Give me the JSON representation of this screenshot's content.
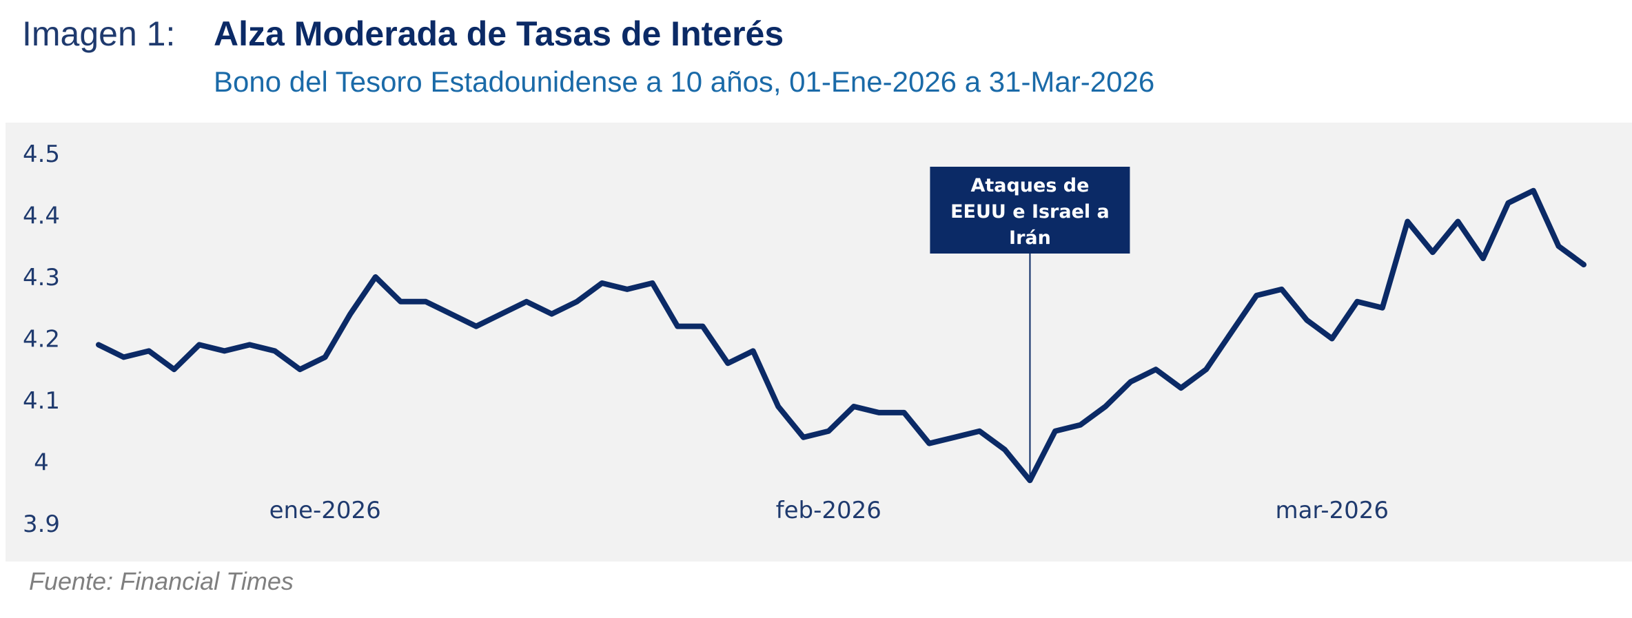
{
  "header": {
    "figure_label": "Imagen 1:",
    "title": "Alza Moderada de Tasas de Interés",
    "subtitle": "Bono del Tesoro Estadounidense a 10 años, 01-Ene-2026  a 31-Mar-2026"
  },
  "source": "Fuente: Financial Times",
  "colors": {
    "line": "#0b2a66",
    "plot_background": "#f2f2f2",
    "annotation_box": "#0b2a66",
    "annotation_text": "#ffffff"
  },
  "chart_data": {
    "type": "line",
    "title": "Alza Moderada de Tasas de Interés",
    "subtitle": "Bono del Tesoro Estadounidense a 10 años, 01-Ene-2026  a 31-Mar-2026",
    "xlabel": "",
    "ylabel": "",
    "ylim": [
      3.9,
      4.5
    ],
    "y_ticks": [
      "3.9",
      "4",
      "4.1",
      "4.2",
      "4.3",
      "4.4",
      "4.5"
    ],
    "x_ticks": [
      {
        "label": "ene-2026",
        "index": 9
      },
      {
        "label": "feb-2026",
        "index": 29
      },
      {
        "label": "mar-2026",
        "index": 49
      }
    ],
    "grid": false,
    "legend": "none",
    "series": [
      {
        "values": [
          4.19,
          4.17,
          4.18,
          4.15,
          4.19,
          4.18,
          4.19,
          4.18,
          4.15,
          4.17,
          4.24,
          4.3,
          4.26,
          4.26,
          4.24,
          4.22,
          4.24,
          4.26,
          4.24,
          4.26,
          4.29,
          4.28,
          4.29,
          4.22,
          4.22,
          4.16,
          4.18,
          4.09,
          4.04,
          4.05,
          4.09,
          4.08,
          4.08,
          4.03,
          4.04,
          4.05,
          4.02,
          3.97,
          4.05,
          4.06,
          4.09,
          4.13,
          4.15,
          4.12,
          4.15,
          4.21,
          4.27,
          4.28,
          4.23,
          4.2,
          4.26,
          4.25,
          4.39,
          4.34,
          4.39,
          4.33,
          4.42,
          4.44,
          4.35,
          4.32
        ]
      }
    ],
    "annotations": [
      {
        "text_lines": [
          "Ataques de",
          "EEUU e Israel a",
          "Irán"
        ],
        "index": 37
      }
    ]
  }
}
